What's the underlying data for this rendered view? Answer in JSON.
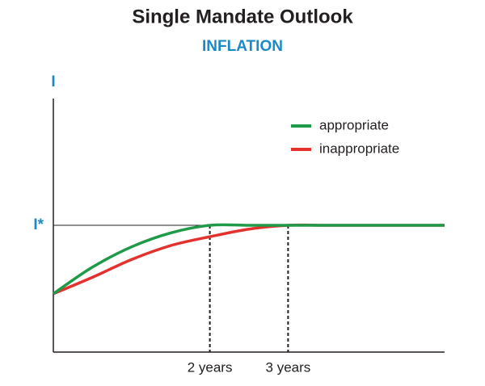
{
  "chart_data": {
    "type": "line",
    "title": "Single Mandate Outlook",
    "subtitle": "INFLATION",
    "y_label": "I",
    "x": [
      0,
      0.5,
      1,
      1.5,
      2,
      2.5,
      3,
      3.5,
      4,
      4.5,
      5
    ],
    "series": [
      {
        "name": "appropriate",
        "color": "#1f9a48",
        "values": [
          0.46,
          0.67,
          0.83,
          0.94,
          1,
          1,
          1,
          1,
          1,
          1,
          1
        ]
      },
      {
        "name": "inappropriate",
        "color": "#e3312d",
        "values": [
          0.46,
          0.59,
          0.73,
          0.84,
          0.91,
          0.97,
          1,
          1,
          1,
          1,
          1
        ]
      }
    ],
    "xlim": [
      0,
      5
    ],
    "ylim": [
      0,
      2
    ],
    "xticks": [
      {
        "value": 2,
        "label": "2 years"
      },
      {
        "value": 3,
        "label": "3 years"
      }
    ],
    "yticks": [
      {
        "value": 1,
        "label": "I*"
      }
    ],
    "legend": "top-right"
  }
}
